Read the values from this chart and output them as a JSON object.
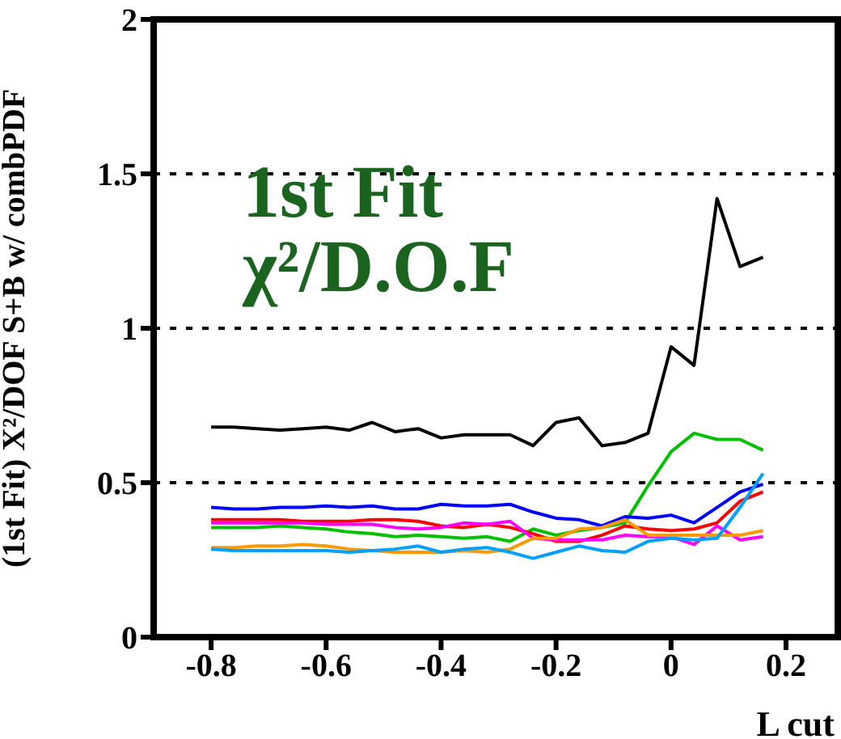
{
  "chart_data": {
    "type": "line",
    "xlabel": "L cut",
    "ylabel": "(1st Fit)  X²/DOF S+B w/ combPDF",
    "annotations": [
      "1st Fit",
      "χ²/D.O.F"
    ],
    "x": [
      -0.8,
      -0.76,
      -0.72,
      -0.68,
      -0.64,
      -0.6,
      -0.56,
      -0.52,
      -0.48,
      -0.44,
      -0.4,
      -0.36,
      -0.32,
      -0.28,
      -0.24,
      -0.2,
      -0.16,
      -0.12,
      -0.08,
      -0.04,
      0,
      0.04,
      0.08,
      0.12,
      0.16
    ],
    "xlim": [
      -0.9,
      0.29
    ],
    "xticks": [
      -0.8,
      -0.6,
      -0.4,
      -0.2,
      0,
      0.2
    ],
    "ylim": [
      0,
      2
    ],
    "yticks": [
      0,
      0.5,
      1,
      1.5,
      2
    ],
    "grid": "y",
    "marker": "none",
    "line_style": "solid",
    "series": [
      {
        "color": "#000000",
        "values": [
          0.68,
          0.68,
          0.675,
          0.67,
          0.675,
          0.68,
          0.67,
          0.695,
          0.665,
          0.675,
          0.645,
          0.655,
          0.655,
          0.655,
          0.62,
          0.695,
          0.71,
          0.62,
          0.63,
          0.66,
          0.94,
          0.88,
          1.42,
          1.2,
          1.23
        ]
      },
      {
        "color": "#00c000",
        "values": [
          0.355,
          0.355,
          0.355,
          0.36,
          0.355,
          0.35,
          0.34,
          0.335,
          0.325,
          0.33,
          0.325,
          0.32,
          0.325,
          0.31,
          0.35,
          0.33,
          0.345,
          0.355,
          0.37,
          0.49,
          0.6,
          0.66,
          0.64,
          0.64,
          0.605
        ]
      },
      {
        "color": "#0000ff",
        "values": [
          0.42,
          0.415,
          0.415,
          0.42,
          0.42,
          0.425,
          0.42,
          0.425,
          0.415,
          0.415,
          0.43,
          0.425,
          0.425,
          0.43,
          0.405,
          0.385,
          0.38,
          0.36,
          0.39,
          0.385,
          0.395,
          0.37,
          0.42,
          0.47,
          0.495
        ]
      },
      {
        "color": "#ff0000",
        "values": [
          0.38,
          0.38,
          0.38,
          0.38,
          0.375,
          0.375,
          0.375,
          0.38,
          0.38,
          0.375,
          0.36,
          0.355,
          0.365,
          0.355,
          0.335,
          0.31,
          0.31,
          0.33,
          0.36,
          0.35,
          0.345,
          0.35,
          0.37,
          0.44,
          0.47
        ]
      },
      {
        "color": "#ff00ff",
        "values": [
          0.37,
          0.37,
          0.37,
          0.37,
          0.37,
          0.365,
          0.365,
          0.365,
          0.355,
          0.35,
          0.355,
          0.37,
          0.365,
          0.375,
          0.32,
          0.315,
          0.315,
          0.315,
          0.33,
          0.325,
          0.325,
          0.3,
          0.36,
          0.315,
          0.325
        ]
      },
      {
        "color": "#ff9900",
        "values": [
          0.29,
          0.29,
          0.295,
          0.295,
          0.3,
          0.295,
          0.285,
          0.28,
          0.275,
          0.275,
          0.275,
          0.28,
          0.275,
          0.285,
          0.32,
          0.32,
          0.35,
          0.355,
          0.38,
          0.33,
          0.33,
          0.33,
          0.33,
          0.33,
          0.345
        ]
      },
      {
        "color": "#00a0ff",
        "values": [
          0.285,
          0.28,
          0.28,
          0.28,
          0.28,
          0.28,
          0.275,
          0.28,
          0.285,
          0.295,
          0.275,
          0.285,
          0.29,
          0.275,
          0.255,
          0.275,
          0.295,
          0.28,
          0.275,
          0.31,
          0.32,
          0.315,
          0.32,
          0.42,
          0.53
        ]
      }
    ]
  }
}
